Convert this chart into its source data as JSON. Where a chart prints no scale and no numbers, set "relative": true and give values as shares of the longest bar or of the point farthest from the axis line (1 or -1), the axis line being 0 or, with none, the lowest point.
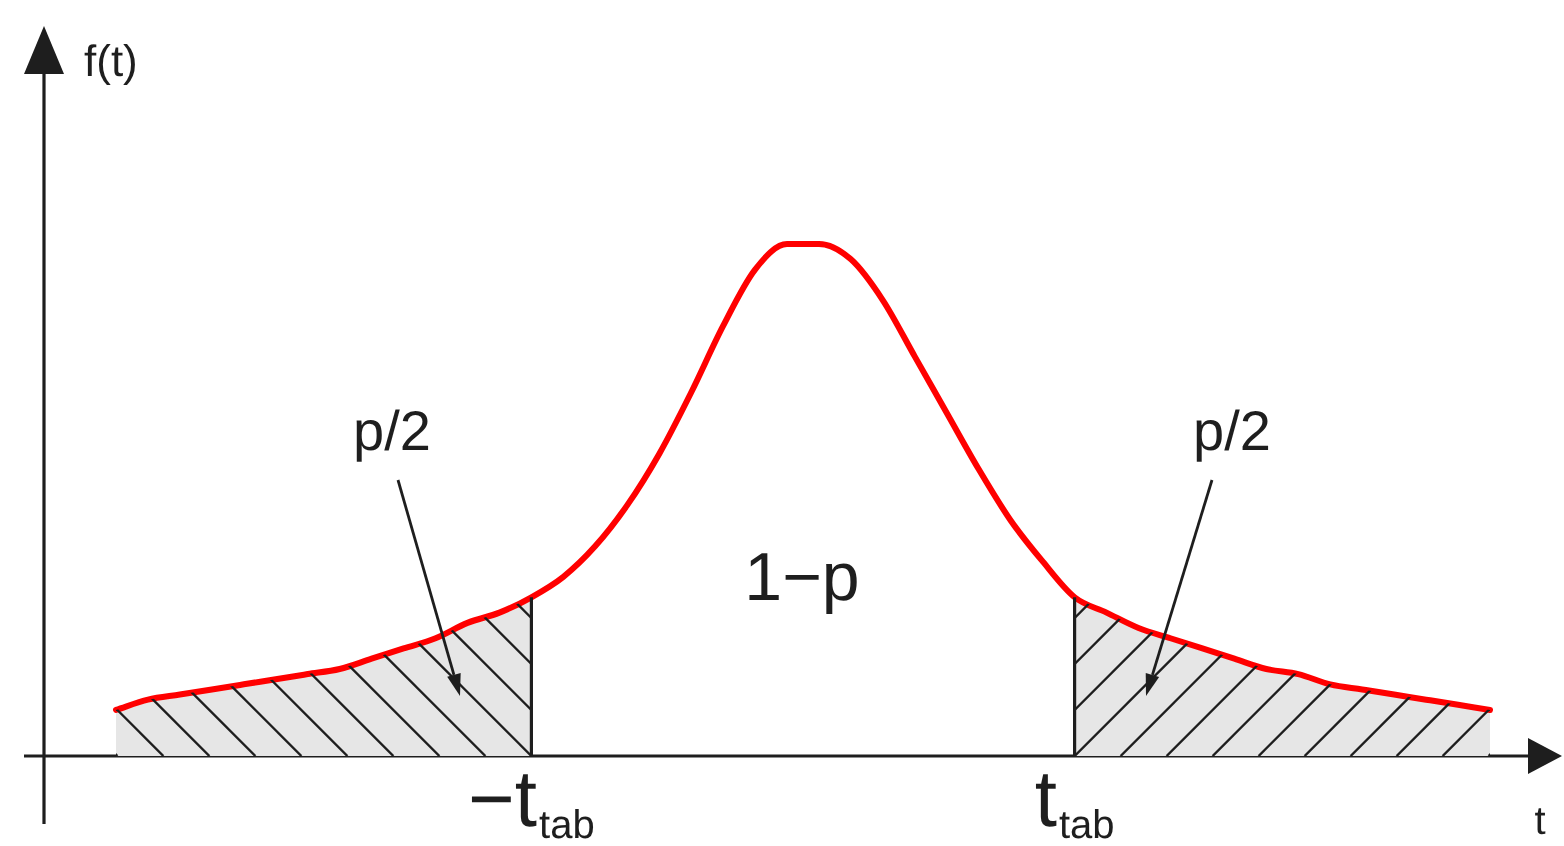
{
  "chart_data": {
    "type": "line",
    "relative": true,
    "marker": "none",
    "tick_labels": "x",
    "ylabel": "f(t)",
    "xlabel": "t",
    "categories": [
      null,
      null,
      null,
      null,
      null,
      null,
      null,
      null,
      null,
      null,
      null,
      null,
      null,
      "−t$_{tab}$",
      null,
      null,
      null,
      null,
      null,
      null,
      null,
      null,
      null,
      null,
      null,
      null,
      null,
      null,
      null,
      null,
      "t$_{tab}$",
      null,
      null,
      null,
      null,
      null,
      null,
      null,
      null,
      null,
      null,
      null,
      null,
      null
    ],
    "series": [
      {
        "color": "#ff0000",
        "values": [
          0.09,
          0.11,
          0.12,
          0.13,
          0.14,
          0.15,
          0.16,
          0.17,
          0.19,
          0.21,
          0.23,
          0.26,
          0.28,
          0.31,
          0.35,
          0.41,
          0.49,
          0.59,
          0.71,
          0.84,
          0.95,
          1,
          1,
          0.97,
          0.89,
          0.78,
          0.67,
          0.56,
          0.46,
          0.38,
          0.31,
          0.28,
          0.25,
          0.23,
          0.21,
          0.19,
          0.17,
          0.16,
          0.14,
          0.13,
          0.12,
          0.11,
          0.1,
          0.09
        ]
      },
      {
        "type": "area",
        "color": "#e6e6e6",
        "values": [
          0.09,
          0.11,
          0.12,
          0.13,
          0.14,
          0.15,
          0.16,
          0.17,
          0.19,
          0.21,
          0.23,
          0.26,
          0.28,
          0.31,
          null,
          null,
          null,
          null,
          null,
          null,
          null,
          null,
          null,
          null,
          null,
          null,
          null,
          null,
          null,
          null,
          0.31,
          0.28,
          0.25,
          0.23,
          0.21,
          0.19,
          0.17,
          0.16,
          0.14,
          0.13,
          0.12,
          0.11,
          0.1,
          0.09
        ]
      }
    ],
    "annotations": [
      "p/2",
      "1−p",
      "p/2"
    ]
  }
}
